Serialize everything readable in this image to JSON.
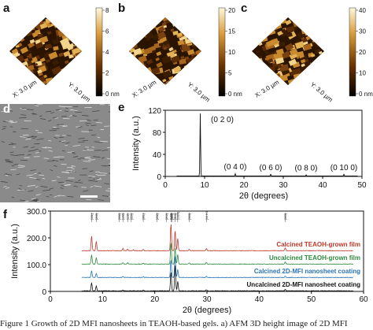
{
  "panels": {
    "a": {
      "label": "a",
      "x_axis": "X: 3.0 µm",
      "y_axis": "Y: 3.0 µm",
      "colorbar_ticks": [
        "8",
        "6",
        "4",
        "2",
        "0 nm"
      ]
    },
    "b": {
      "label": "b",
      "x_axis": "X: 3.0 µm",
      "y_axis": "Y: 3.0 µm",
      "colorbar_ticks": [
        "20",
        "15",
        "10",
        "5",
        "0 nm"
      ]
    },
    "c": {
      "label": "c",
      "x_axis": "X: 3.0 µm",
      "y_axis": "Y: 3.0 µm",
      "colorbar_ticks": [
        "40",
        "30",
        "20",
        "10",
        "0 nm"
      ]
    },
    "d": {
      "label": "d"
    },
    "e": {
      "label": "e"
    },
    "f": {
      "label": "f"
    }
  },
  "colors": {
    "afm_dark": "#1a0d00",
    "afm_mid": "#b8741c",
    "afm_light": "#fff3c8",
    "sem": "#8a8a8a",
    "red": "#c0392b",
    "green": "#2e8b3d",
    "blue": "#2a73b8",
    "black": "#111111"
  },
  "chart_data": [
    {
      "type": "line",
      "panel": "e",
      "xlabel": "2θ (degrees)",
      "ylabel": "Intensity (a.u.)",
      "xlim": [
        0,
        50
      ],
      "ylim": [
        0,
        120
      ],
      "xticks": [
        0,
        10,
        20,
        30,
        40,
        50
      ],
      "yticks": [
        0,
        40,
        80,
        120
      ],
      "peaks": [
        {
          "x": 8.9,
          "y": 113,
          "label": "(0 2 0)"
        },
        {
          "x": 17.8,
          "y": 4,
          "label": "(0 4 0)"
        },
        {
          "x": 26.8,
          "y": 3,
          "label": "(0 6 0)"
        },
        {
          "x": 35.8,
          "y": 2,
          "label": "(0 8 0)"
        },
        {
          "x": 45.4,
          "y": 3,
          "label": "(0 10 0)"
        }
      ]
    },
    {
      "type": "line",
      "panel": "f",
      "xlabel": "2θ (degrees)",
      "ylabel": "Intensity (a.u.)",
      "xlim": [
        0,
        60
      ],
      "ylim": [
        0,
        300
      ],
      "xticks": [
        0,
        10,
        20,
        30,
        40,
        50,
        60
      ],
      "yticks": [
        0,
        100,
        200,
        300
      ],
      "reflections": [
        "[101]",
        "[200]",
        "[002]",
        "[102]",
        "[112]",
        "[220]",
        "[301]",
        "[202]",
        "[212]",
        "[133]",
        "[303]",
        "[313]",
        "[1024]",
        "[333]",
        "[10 0 0]",
        "[303]"
      ],
      "series": [
        {
          "name": "Calcined TEAOH-grown film",
          "color": "#c0392b",
          "baseline": 150,
          "peaks": [
            [
              7.9,
              55
            ],
            [
              8.8,
              35
            ],
            [
              13.9,
              8
            ],
            [
              14.8,
              6
            ],
            [
              15.9,
              4
            ],
            [
              17.8,
              5
            ],
            [
              23.1,
              100
            ],
            [
              23.9,
              75
            ],
            [
              24.4,
              45
            ],
            [
              26.6,
              6
            ],
            [
              29.9,
              8
            ],
            [
              45.0,
              10
            ]
          ]
        },
        {
          "name": "Uncalcined TEAOH-grown film",
          "color": "#2e8b3d",
          "baseline": 100,
          "peaks": [
            [
              7.9,
              35
            ],
            [
              8.8,
              25
            ],
            [
              13.9,
              6
            ],
            [
              14.8,
              5
            ],
            [
              17.8,
              4
            ],
            [
              23.1,
              80
            ],
            [
              23.9,
              60
            ],
            [
              24.4,
              35
            ],
            [
              26.6,
              5
            ],
            [
              29.9,
              6
            ],
            [
              45.0,
              8
            ]
          ]
        },
        {
          "name": "Calcined 2D-MFI nanosheet coating",
          "color": "#2a73b8",
          "baseline": 50,
          "peaks": [
            [
              7.9,
              25
            ],
            [
              8.8,
              15
            ],
            [
              13.9,
              4
            ],
            [
              17.8,
              3
            ],
            [
              23.1,
              65
            ],
            [
              23.9,
              80
            ],
            [
              24.4,
              30
            ],
            [
              29.9,
              4
            ],
            [
              45.0,
              5
            ]
          ]
        },
        {
          "name": "Uncalcined 2D-MFI nanosheet coating",
          "color": "#111111",
          "baseline": 0,
          "peaks": [
            [
              7.9,
              30
            ],
            [
              8.8,
              18
            ],
            [
              13.9,
              4
            ],
            [
              17.8,
              3
            ],
            [
              23.1,
              70
            ],
            [
              23.9,
              95
            ],
            [
              24.4,
              35
            ],
            [
              29.9,
              4
            ],
            [
              45.0,
              5
            ]
          ]
        }
      ]
    }
  ],
  "caption": "Figure 1  Growth of 2D MFI nanosheets in TEAOH-based gels. a) AFM 3D height image of 2D MFI"
}
